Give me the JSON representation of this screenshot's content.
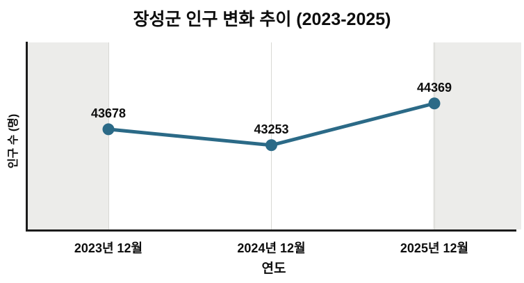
{
  "colors": {
    "line": "#2b6a87",
    "band": "#ececea",
    "axis": "#1b1b1b",
    "gridline": "#d8d8d4",
    "text": "#0d0d0d",
    "background": "#ffffff"
  },
  "chart_data": {
    "type": "line",
    "title": "장성군 인구 변화 추이 (2023-2025)",
    "categories": [
      "2023년 12월",
      "2024년 12월",
      "2025년 12월"
    ],
    "values": [
      43678,
      43253,
      44369
    ],
    "xlabel": "연도",
    "ylabel": "인구 수 (명)",
    "ylim": [
      41000,
      46000
    ],
    "data_labels": true,
    "marker": "circle",
    "legend": "none",
    "grid": "vertical-lines-at-ticks",
    "shaded_bands": "left-and-right-plot-margins"
  }
}
